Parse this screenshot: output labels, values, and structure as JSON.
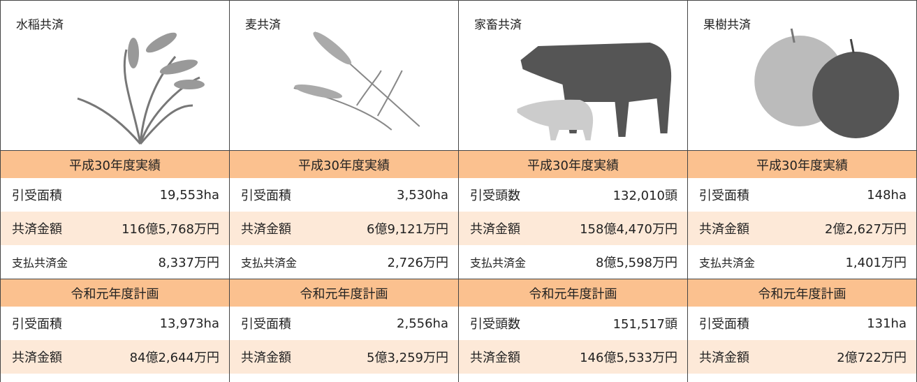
{
  "columns": [
    {
      "title": "水稲共済",
      "sections": [
        {
          "heading": "平成30年度実績",
          "rows": [
            [
              "引受面積",
              "19,553ha"
            ],
            [
              "共済金額",
              "116億5,768万円"
            ],
            [
              "支払共済金",
              "8,337万円"
            ]
          ]
        },
        {
          "heading": "令和元年度計画",
          "rows": [
            [
              "引受面積",
              "13,973ha"
            ],
            [
              "共済金額",
              "84億2,644万円"
            ]
          ]
        }
      ]
    },
    {
      "title": "麦共済",
      "sections": [
        {
          "heading": "平成30年度実績",
          "rows": [
            [
              "引受面積",
              "3,530ha"
            ],
            [
              "共済金額",
              "6億9,121万円"
            ],
            [
              "支払共済金",
              "2,726万円"
            ]
          ]
        },
        {
          "heading": "令和元年度計画",
          "rows": [
            [
              "引受面積",
              "2,556ha"
            ],
            [
              "共済金額",
              "5億3,259万円"
            ]
          ]
        }
      ]
    },
    {
      "title": "家畜共済",
      "sections": [
        {
          "heading": "平成30年度実績",
          "rows": [
            [
              "引受頭数",
              "132,010頭"
            ],
            [
              "共済金額",
              "158億4,470万円"
            ],
            [
              "支払共済金",
              "8億5,598万円"
            ]
          ]
        },
        {
          "heading": "令和元年度計画",
          "rows": [
            [
              "引受頭数",
              "151,517頭"
            ],
            [
              "共済金額",
              "146億5,533万円"
            ]
          ]
        }
      ]
    },
    {
      "title": "果樹共済",
      "sections": [
        {
          "heading": "平成30年度実績",
          "rows": [
            [
              "引受面積",
              "148ha"
            ],
            [
              "共済金額",
              "2億2,627万円"
            ],
            [
              "支払共済金",
              "1,401万円"
            ]
          ]
        },
        {
          "heading": "令和元年度計画",
          "rows": [
            [
              "引受面積",
              "131ha"
            ],
            [
              "共済金額",
              "2億722万円"
            ]
          ]
        }
      ]
    }
  ]
}
